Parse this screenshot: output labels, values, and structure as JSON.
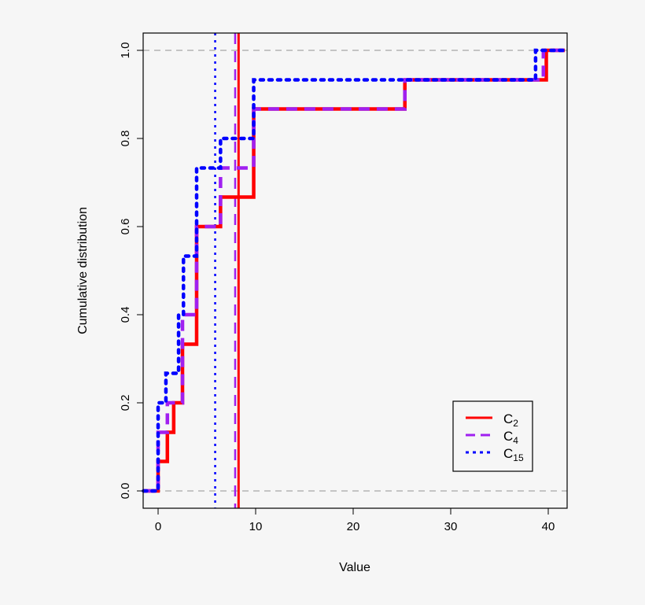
{
  "chart_data": {
    "type": "line",
    "title": "",
    "xlabel": "Value",
    "ylabel": "Cumulative distribution",
    "xlim": [
      -1.5,
      41.7
    ],
    "ylim": [
      -0.04,
      1.04
    ],
    "xticks": [
      0,
      10,
      20,
      30,
      40
    ],
    "xtick_labels": [
      "0",
      "10",
      "20",
      "30",
      "40"
    ],
    "yticks": [
      0,
      0.2,
      0.4,
      0.6,
      0.8,
      1.0
    ],
    "ytick_labels": [
      "0.0",
      "0.2",
      "0.4",
      "0.6",
      "0.8",
      "1.0"
    ],
    "reference_lines_y": [
      0,
      1
    ],
    "reference_line_color": "#b4b4b4",
    "legend_position": "bottom-right",
    "series": [
      {
        "name": "C",
        "subscript": "2",
        "color": "#ff0000",
        "style": "solid",
        "steps": [
          [
            -1.5,
            0
          ],
          [
            0,
            0.067
          ],
          [
            0.95,
            0.133
          ],
          [
            1.6,
            0.2
          ],
          [
            2.5,
            0.333
          ],
          [
            3.95,
            0.6
          ],
          [
            6.4,
            0.667
          ],
          [
            9.8,
            0.867
          ],
          [
            25.3,
            0.933
          ],
          [
            39.8,
            1.0
          ]
        ],
        "vline": 8.25
      },
      {
        "name": "C",
        "subscript": "4",
        "color": "#a020f0",
        "style": "dashed",
        "steps": [
          [
            -1.5,
            0
          ],
          [
            0,
            0.133
          ],
          [
            0.95,
            0.2
          ],
          [
            2.5,
            0.4
          ],
          [
            3.95,
            0.6
          ],
          [
            6.4,
            0.733
          ],
          [
            9.8,
            0.867
          ],
          [
            25.3,
            0.933
          ],
          [
            39.5,
            1.0
          ]
        ],
        "vline": 7.9
      },
      {
        "name": "C",
        "subscript": "15",
        "color": "#0000ff",
        "style": "dotted",
        "steps": [
          [
            -1.5,
            0
          ],
          [
            0,
            0.2
          ],
          [
            0.8,
            0.267
          ],
          [
            2.1,
            0.4
          ],
          [
            2.6,
            0.533
          ],
          [
            3.95,
            0.733
          ],
          [
            6.4,
            0.8
          ],
          [
            9.8,
            0.933
          ],
          [
            38.7,
            1.0
          ]
        ],
        "vline": 5.85
      }
    ]
  }
}
